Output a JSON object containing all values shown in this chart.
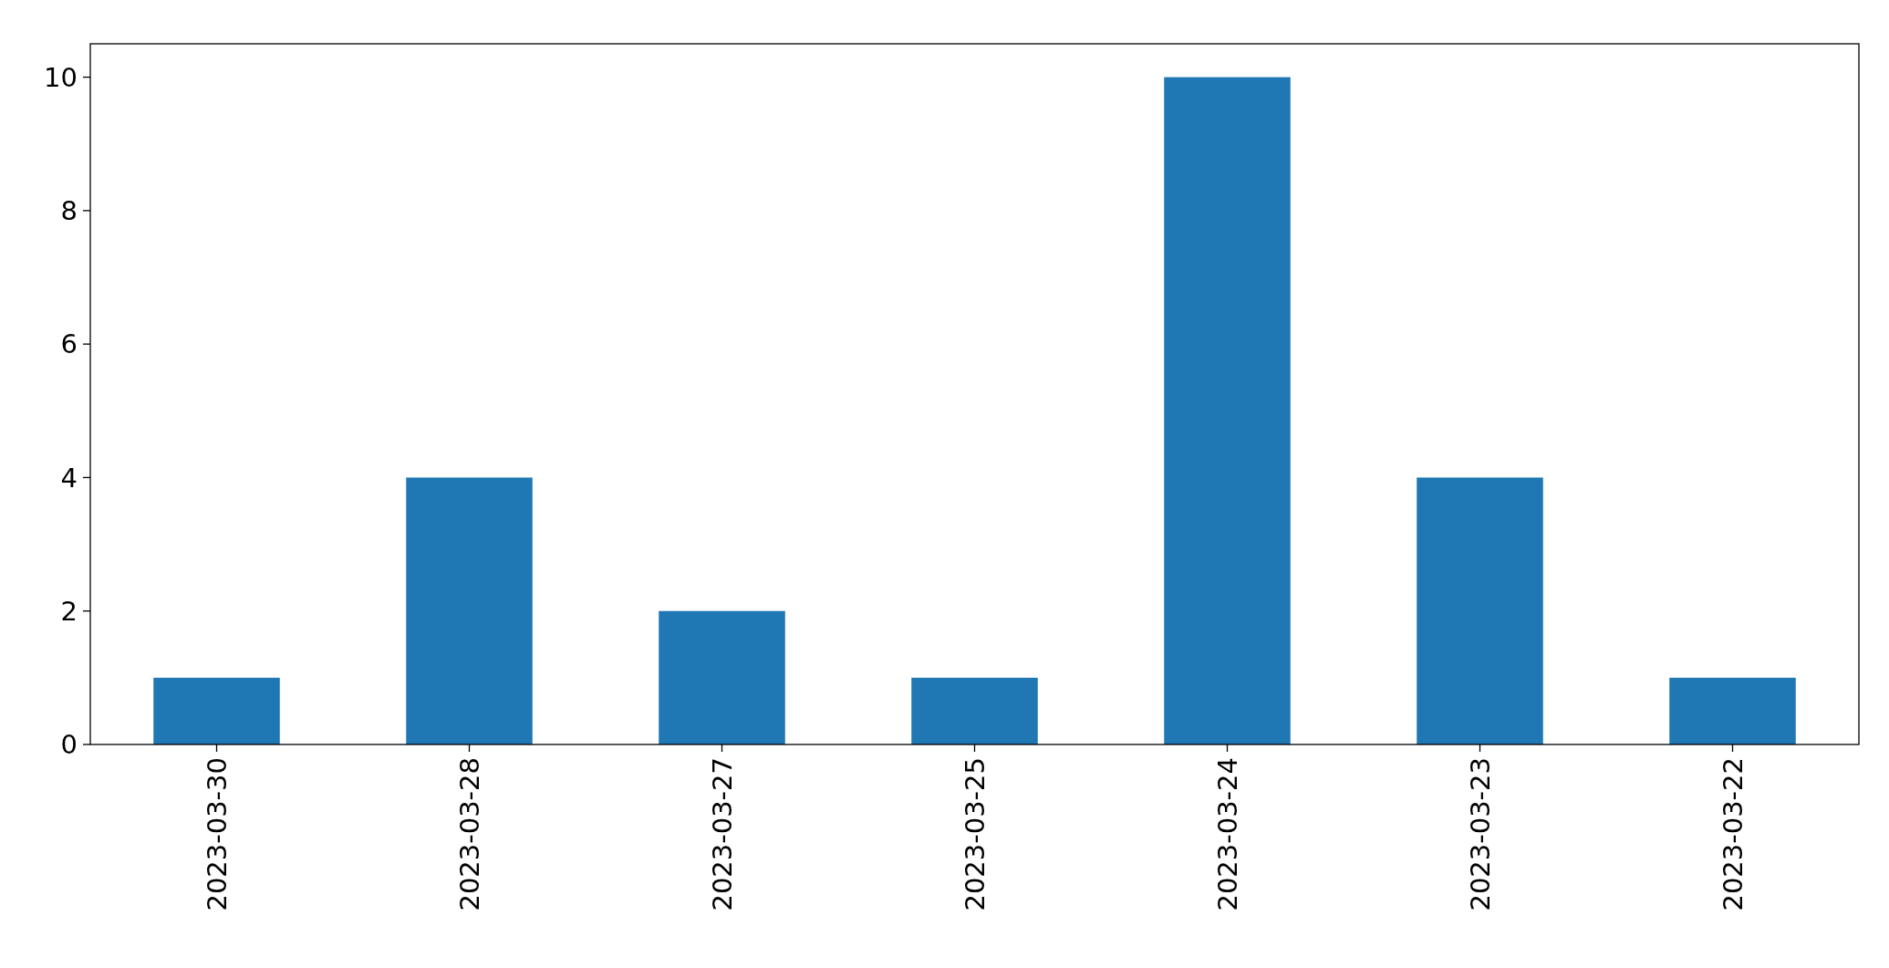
{
  "chart_data": {
    "type": "bar",
    "categories": [
      "2023-03-30",
      "2023-03-28",
      "2023-03-27",
      "2023-03-25",
      "2023-03-24",
      "2023-03-23",
      "2023-03-22"
    ],
    "values": [
      1,
      4,
      2,
      1,
      10,
      4,
      1
    ],
    "color": "#1f77b4",
    "ylim": [
      0,
      10.5
    ],
    "yticks": [
      0,
      2,
      4,
      6,
      8,
      10
    ],
    "grid": false
  }
}
